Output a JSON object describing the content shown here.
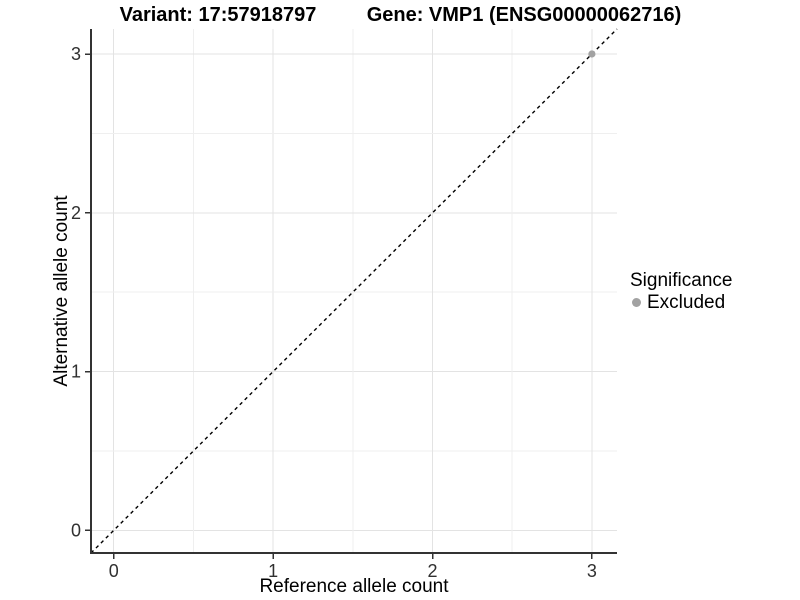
{
  "header": {
    "title_left": "Variant: 17:57918797",
    "title_right": "Gene: VMP1 (ENSG00000062716)"
  },
  "chart_data": {
    "type": "scatter",
    "xlabel": "Reference allele count",
    "ylabel": "Alternative allele count",
    "xlim": [
      -0.1425,
      3.1575
    ],
    "ylim": [
      -0.1425,
      3.1575
    ],
    "x_ticks": [
      0,
      1,
      2,
      3
    ],
    "y_ticks": [
      0,
      1,
      2,
      3
    ],
    "grid": {
      "on": true,
      "minor_step": 0.5,
      "major_color": "#e3e3e3",
      "minor_color": "#efefef"
    },
    "identity_line": {
      "slope": 1,
      "intercept": 0,
      "style": "dashed",
      "color": "#000000"
    },
    "series": [
      {
        "name": "Excluded",
        "color": "#a2a2a2",
        "points": [
          {
            "x": 3,
            "y": 3
          }
        ]
      }
    ],
    "legend": {
      "title": "Significance",
      "position": "right",
      "entries": [
        {
          "label": "Excluded",
          "color": "#a2a2a2"
        }
      ]
    }
  },
  "styles": {
    "axis_line_color": "#333333",
    "tick_color": "#333333",
    "tick_label_color": "#303030",
    "background": "#ffffff"
  }
}
